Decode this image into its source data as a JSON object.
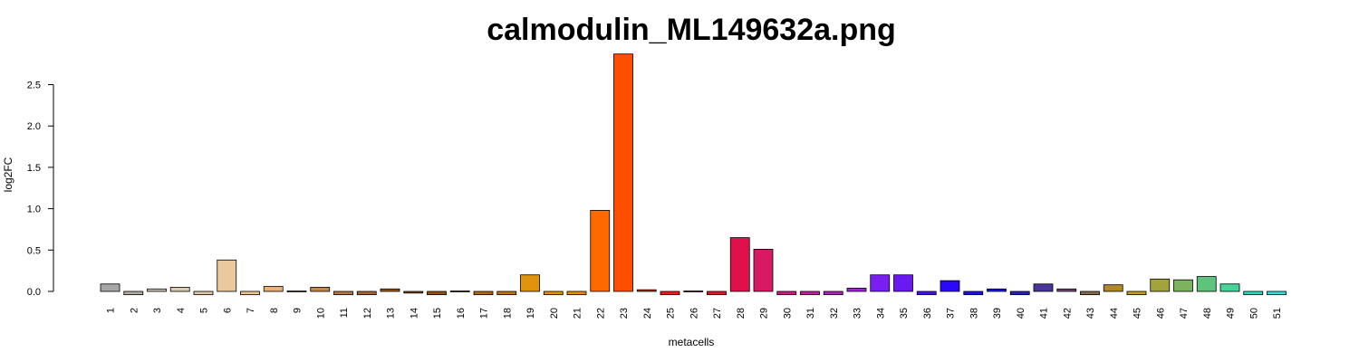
{
  "chart_data": {
    "type": "bar",
    "title": "calmodulin_ML149632a.png",
    "xlabel": "metacells",
    "ylabel": "log2FC",
    "ylim": [
      -0.05,
      2.9
    ],
    "yticks": [
      "0.0",
      "0.5",
      "1.0",
      "1.5",
      "2.0",
      "2.5"
    ],
    "grid": false,
    "categories": [
      "1",
      "2",
      "3",
      "4",
      "5",
      "6",
      "7",
      "8",
      "9",
      "10",
      "11",
      "12",
      "13",
      "14",
      "15",
      "16",
      "17",
      "18",
      "19",
      "20",
      "21",
      "22",
      "23",
      "24",
      "25",
      "26",
      "27",
      "28",
      "29",
      "30",
      "31",
      "32",
      "33",
      "34",
      "35",
      "36",
      "37",
      "38",
      "39",
      "40",
      "41",
      "42",
      "43",
      "44",
      "45",
      "46",
      "47",
      "48",
      "49",
      "50",
      "51"
    ],
    "values": [
      0.09,
      -0.04,
      0.03,
      0.05,
      -0.04,
      0.38,
      -0.04,
      0.06,
      0.0,
      0.05,
      -0.04,
      -0.04,
      0.03,
      -0.02,
      -0.04,
      -0.01,
      -0.04,
      -0.04,
      0.2,
      -0.04,
      -0.04,
      0.98,
      2.87,
      0.02,
      -0.04,
      -0.01,
      -0.04,
      0.65,
      0.51,
      -0.04,
      -0.04,
      -0.04,
      0.04,
      0.2,
      0.2,
      -0.04,
      0.13,
      -0.04,
      0.03,
      -0.04,
      0.09,
      0.03,
      -0.04,
      0.08,
      -0.04,
      0.15,
      0.14,
      0.18,
      0.09,
      -0.04,
      -0.04
    ],
    "colors": [
      "#a6a6a6",
      "#b3aca2",
      "#cfc3b4",
      "#dccbb3",
      "#e3c6a8",
      "#ebc99e",
      "#efc390",
      "#e9b077",
      "#d7a068",
      "#c7884e",
      "#b9773e",
      "#a9652e",
      "#99561f",
      "#8b4a14",
      "#94500f",
      "#a35c0c",
      "#b46808",
      "#c47505",
      "#e0930c",
      "#e69104",
      "#f08a02",
      "#ff6a00",
      "#ff4e00",
      "#f22a12",
      "#ec1d1a",
      "#e31a22",
      "#e2182a",
      "#e0104d",
      "#d71a63",
      "#cc1c88",
      "#c71a9e",
      "#b61ebc",
      "#a71ee0",
      "#7a1ef2",
      "#6a1af0",
      "#4a10f2",
      "#2a08f8",
      "#1a10e8",
      "#1a1ad8",
      "#2a22b8",
      "#4a3598",
      "#6b4a7a",
      "#866a4e",
      "#b38a20",
      "#c49f25",
      "#a3a33e",
      "#7db35e",
      "#5ec47c",
      "#46d49a",
      "#2ed8c0",
      "#27e2e0"
    ]
  }
}
